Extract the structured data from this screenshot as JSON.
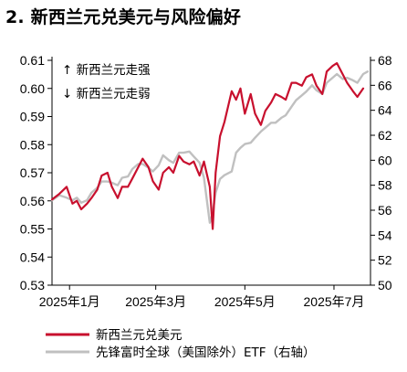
{
  "chart_data": {
    "type": "line",
    "title": "2. 新西兰元兑美元与风险偏好",
    "annotations": [
      "↑ 新西兰元走强",
      "↓ 新西兰元走弱"
    ],
    "x_tick_labels": [
      "2025年1月",
      "2025年3月",
      "2025年5月",
      "2025年7月"
    ],
    "x_range": [
      "2024-12-20",
      "2025-07-26"
    ],
    "y_left": {
      "ylim": [
        0.53,
        0.61
      ],
      "ticks": [
        "0.53",
        "0.54",
        "0.55",
        "0.56",
        "0.57",
        "0.58",
        "0.59",
        "0.60",
        "0.61"
      ]
    },
    "y_right": {
      "ylim": [
        50,
        68
      ],
      "ticks": [
        "50",
        "52",
        "54",
        "56",
        "58",
        "60",
        "62",
        "64",
        "66",
        "68"
      ]
    },
    "legend_position": "bottom",
    "series": [
      {
        "name": "新西兰元兑美元",
        "axis": "left",
        "color": "#c8102e",
        "points": [
          [
            "2024-12-20",
            0.5605
          ],
          [
            "2024-12-25",
            0.5625
          ],
          [
            "2024-12-30",
            0.565
          ],
          [
            "2025-01-03",
            0.559
          ],
          [
            "2025-01-06",
            0.56
          ],
          [
            "2025-01-09",
            0.557
          ],
          [
            "2025-01-13",
            0.559
          ],
          [
            "2025-01-16",
            0.561
          ],
          [
            "2025-01-20",
            0.564
          ],
          [
            "2025-01-23",
            0.569
          ],
          [
            "2025-01-27",
            0.57
          ],
          [
            "2025-01-30",
            0.565
          ],
          [
            "2025-02-03",
            0.561
          ],
          [
            "2025-02-06",
            0.565
          ],
          [
            "2025-02-10",
            0.565
          ],
          [
            "2025-02-13",
            0.568
          ],
          [
            "2025-02-17",
            0.572
          ],
          [
            "2025-02-20",
            0.575
          ],
          [
            "2025-02-24",
            0.572
          ],
          [
            "2025-02-27",
            0.567
          ],
          [
            "2025-03-03",
            0.564
          ],
          [
            "2025-03-06",
            0.57
          ],
          [
            "2025-03-10",
            0.572
          ],
          [
            "2025-03-13",
            0.57
          ],
          [
            "2025-03-17",
            0.576
          ],
          [
            "2025-03-20",
            0.574
          ],
          [
            "2025-03-24",
            0.573
          ],
          [
            "2025-03-27",
            0.574
          ],
          [
            "2025-03-31",
            0.569
          ],
          [
            "2025-04-03",
            0.574
          ],
          [
            "2025-04-07",
            0.565
          ],
          [
            "2025-04-09",
            0.55
          ],
          [
            "2025-04-11",
            0.57
          ],
          [
            "2025-04-14",
            0.583
          ],
          [
            "2025-04-17",
            0.588
          ],
          [
            "2025-04-22",
            0.599
          ],
          [
            "2025-04-25",
            0.596
          ],
          [
            "2025-04-28",
            0.6
          ],
          [
            "2025-05-01",
            0.591
          ],
          [
            "2025-05-05",
            0.598
          ],
          [
            "2025-05-08",
            0.591
          ],
          [
            "2025-05-12",
            0.587
          ],
          [
            "2025-05-15",
            0.592
          ],
          [
            "2025-05-19",
            0.595
          ],
          [
            "2025-05-22",
            0.598
          ],
          [
            "2025-05-26",
            0.597
          ],
          [
            "2025-05-29",
            0.596
          ],
          [
            "2025-06-02",
            0.602
          ],
          [
            "2025-06-05",
            0.602
          ],
          [
            "2025-06-09",
            0.601
          ],
          [
            "2025-06-12",
            0.604
          ],
          [
            "2025-06-16",
            0.605
          ],
          [
            "2025-06-19",
            0.601
          ],
          [
            "2025-06-23",
            0.598
          ],
          [
            "2025-06-26",
            0.606
          ],
          [
            "2025-06-30",
            0.608
          ],
          [
            "2025-07-03",
            0.609
          ],
          [
            "2025-07-07",
            0.605
          ],
          [
            "2025-07-10",
            0.602
          ],
          [
            "2025-07-14",
            0.599
          ],
          [
            "2025-07-17",
            0.597
          ],
          [
            "2025-07-21",
            0.6
          ]
        ]
      },
      {
        "name": "先锋富时全球（美国除外）ETF（右轴）",
        "axis": "right",
        "color": "#c0c0c0",
        "points": [
          [
            "2024-12-20",
            56.8
          ],
          [
            "2024-12-25",
            57.2
          ],
          [
            "2024-12-30",
            57.0
          ],
          [
            "2025-01-03",
            56.8
          ],
          [
            "2025-01-06",
            57.0
          ],
          [
            "2025-01-09",
            56.6
          ],
          [
            "2025-01-13",
            56.8
          ],
          [
            "2025-01-16",
            57.4
          ],
          [
            "2025-01-20",
            57.8
          ],
          [
            "2025-01-23",
            58.3
          ],
          [
            "2025-01-27",
            58.3
          ],
          [
            "2025-01-30",
            58.2
          ],
          [
            "2025-02-03",
            58.0
          ],
          [
            "2025-02-06",
            58.6
          ],
          [
            "2025-02-10",
            58.7
          ],
          [
            "2025-02-13",
            59.3
          ],
          [
            "2025-02-17",
            59.7
          ],
          [
            "2025-02-20",
            59.7
          ],
          [
            "2025-02-24",
            59.4
          ],
          [
            "2025-02-27",
            59.1
          ],
          [
            "2025-03-03",
            59.6
          ],
          [
            "2025-03-06",
            60.4
          ],
          [
            "2025-03-10",
            60.0
          ],
          [
            "2025-03-13",
            59.8
          ],
          [
            "2025-03-17",
            60.6
          ],
          [
            "2025-03-20",
            60.6
          ],
          [
            "2025-03-24",
            60.7
          ],
          [
            "2025-03-27",
            60.3
          ],
          [
            "2025-03-31",
            59.8
          ],
          [
            "2025-04-03",
            58.6
          ],
          [
            "2025-04-07",
            55.0
          ],
          [
            "2025-04-09",
            55.8
          ],
          [
            "2025-04-11",
            57.4
          ],
          [
            "2025-04-14",
            58.5
          ],
          [
            "2025-04-17",
            58.8
          ],
          [
            "2025-04-22",
            59.1
          ],
          [
            "2025-04-25",
            60.6
          ],
          [
            "2025-04-28",
            61.0
          ],
          [
            "2025-05-01",
            61.3
          ],
          [
            "2025-05-05",
            61.4
          ],
          [
            "2025-05-08",
            61.8
          ],
          [
            "2025-05-12",
            62.3
          ],
          [
            "2025-05-15",
            62.6
          ],
          [
            "2025-05-19",
            63.0
          ],
          [
            "2025-05-22",
            63.0
          ],
          [
            "2025-05-26",
            63.4
          ],
          [
            "2025-05-29",
            63.6
          ],
          [
            "2025-06-02",
            64.3
          ],
          [
            "2025-06-05",
            64.8
          ],
          [
            "2025-06-09",
            65.2
          ],
          [
            "2025-06-12",
            65.5
          ],
          [
            "2025-06-16",
            66.0
          ],
          [
            "2025-06-19",
            65.6
          ],
          [
            "2025-06-23",
            65.3
          ],
          [
            "2025-06-26",
            66.2
          ],
          [
            "2025-06-30",
            66.6
          ],
          [
            "2025-07-03",
            66.9
          ],
          [
            "2025-07-07",
            66.5
          ],
          [
            "2025-07-10",
            66.6
          ],
          [
            "2025-07-14",
            66.4
          ],
          [
            "2025-07-17",
            66.2
          ],
          [
            "2025-07-21",
            66.9
          ],
          [
            "2025-07-24",
            67.1
          ]
        ]
      }
    ]
  }
}
